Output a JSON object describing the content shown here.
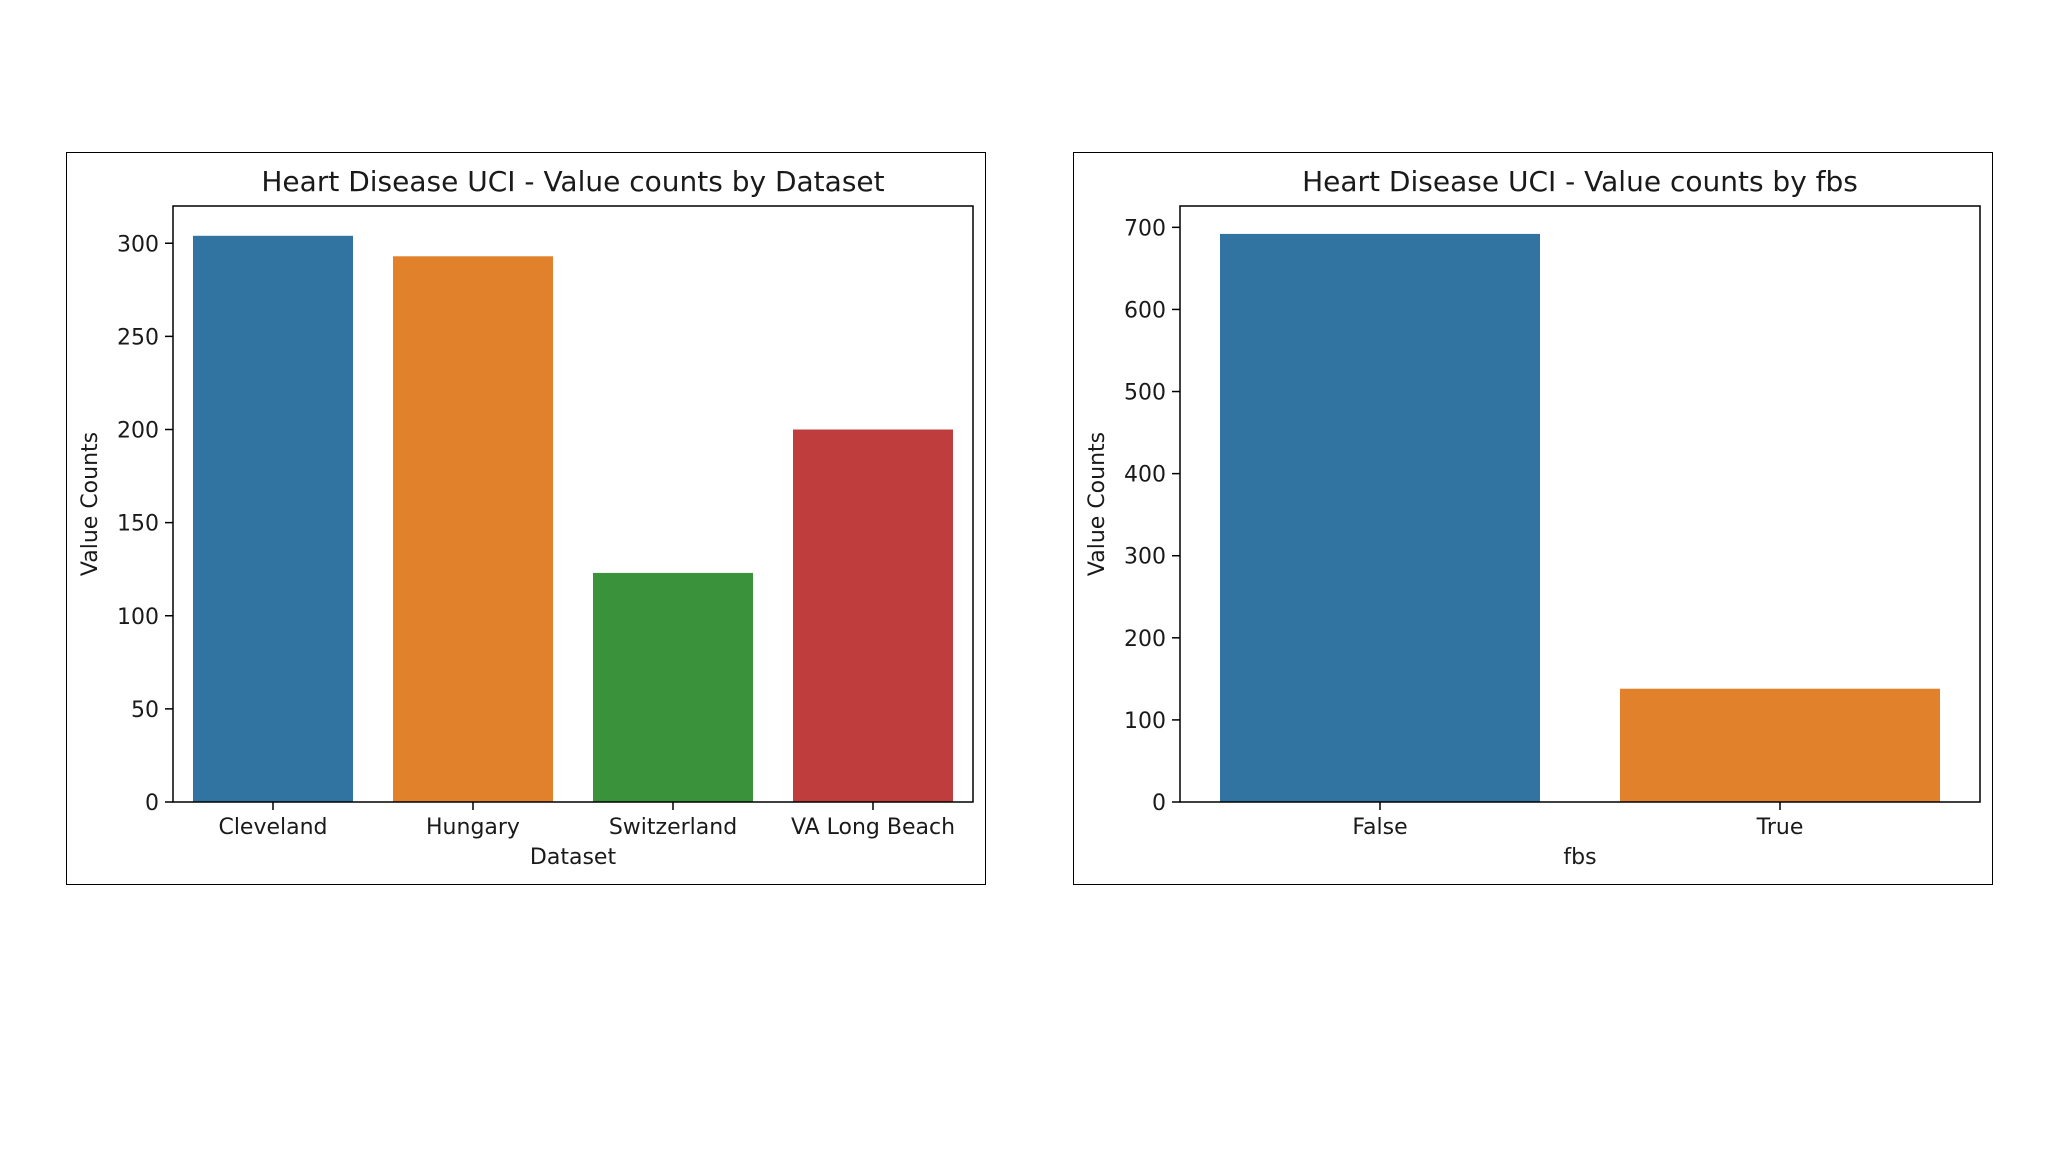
{
  "chart_data": [
    {
      "type": "bar",
      "title": "Heart Disease UCI - Value counts by Dataset",
      "xlabel": "Dataset",
      "ylabel": "Value Counts",
      "categories": [
        "Cleveland",
        "Hungary",
        "Switzerland",
        "VA Long Beach"
      ],
      "values": [
        304,
        293,
        123,
        200
      ],
      "colors": [
        "#3274a1",
        "#e1812c",
        "#3a923a",
        "#c03d3e"
      ],
      "ylim": [
        0,
        320
      ],
      "yticks": [
        0,
        50,
        100,
        150,
        200,
        250,
        300
      ],
      "grid": false
    },
    {
      "type": "bar",
      "title": "Heart Disease UCI - Value counts by fbs",
      "xlabel": "fbs",
      "ylabel": "Value Counts",
      "categories": [
        "False",
        "True"
      ],
      "values": [
        692,
        138
      ],
      "colors": [
        "#3274a1",
        "#e1812c"
      ],
      "ylim": [
        0,
        726
      ],
      "yticks": [
        0,
        100,
        200,
        300,
        400,
        500,
        600,
        700
      ],
      "grid": false
    }
  ]
}
